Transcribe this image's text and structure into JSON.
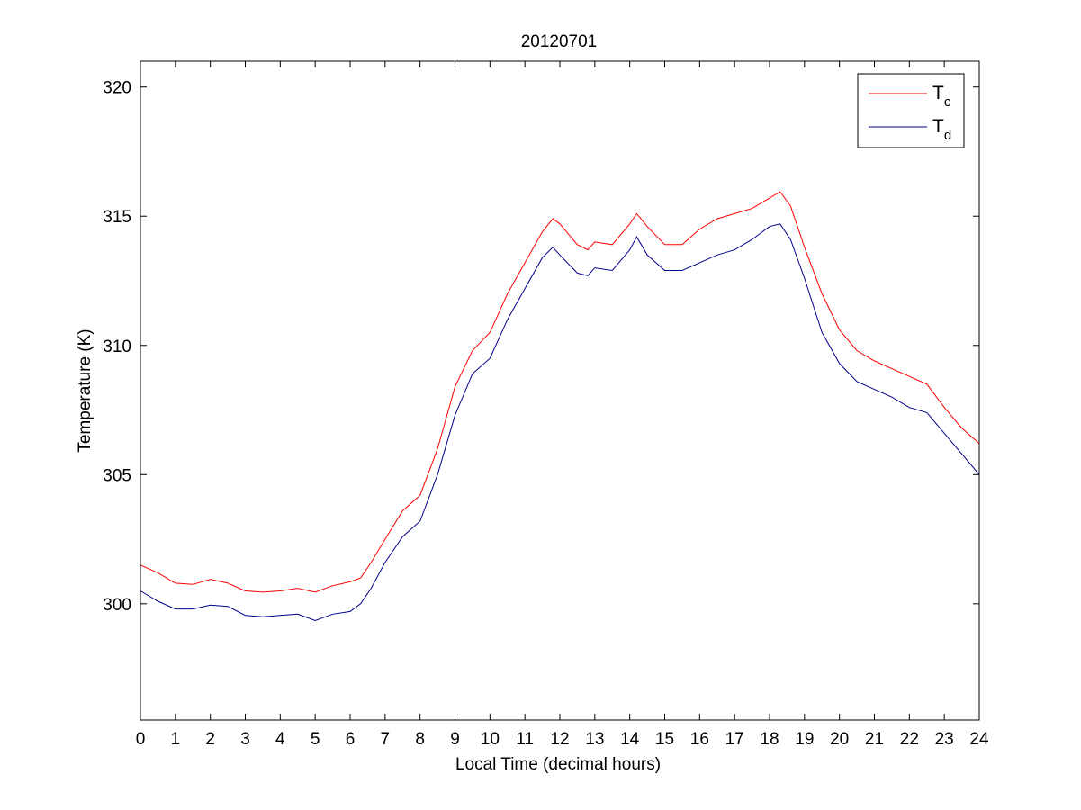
{
  "chart_data": {
    "type": "line",
    "title": "20120701",
    "xlabel": "Local Time (decimal hours)",
    "ylabel": "Temperature (K)",
    "xlim": [
      0,
      24
    ],
    "ylim": [
      295.5,
      321
    ],
    "x_ticks": [
      "0",
      "1",
      "2",
      "3",
      "4",
      "5",
      "6",
      "7",
      "8",
      "9",
      "10",
      "11",
      "12",
      "13",
      "14",
      "15",
      "16",
      "17",
      "18",
      "19",
      "20",
      "21",
      "22",
      "23",
      "24"
    ],
    "y_ticks": [
      "300",
      "305",
      "310",
      "315",
      "320"
    ],
    "grid": false,
    "legend_position": "top-right",
    "series": [
      {
        "name": "T_c",
        "legend_main": "T",
        "legend_sub": "c",
        "color": "#ff0000",
        "points": [
          [
            0,
            301.5
          ],
          [
            0.5,
            301.2
          ],
          [
            1,
            300.8
          ],
          [
            1.5,
            300.75
          ],
          [
            2,
            300.95
          ],
          [
            2.5,
            300.8
          ],
          [
            3,
            300.5
          ],
          [
            3.5,
            300.45
          ],
          [
            4,
            300.5
          ],
          [
            4.5,
            300.6
          ],
          [
            5,
            300.45
          ],
          [
            5.5,
            300.7
          ],
          [
            6,
            300.85
          ],
          [
            6.3,
            301.0
          ],
          [
            6.6,
            301.6
          ],
          [
            7,
            302.5
          ],
          [
            7.5,
            303.6
          ],
          [
            8,
            304.2
          ],
          [
            8.5,
            306.0
          ],
          [
            9,
            308.4
          ],
          [
            9.5,
            309.8
          ],
          [
            10,
            310.5
          ],
          [
            10.5,
            312.0
          ],
          [
            11,
            313.2
          ],
          [
            11.5,
            314.4
          ],
          [
            11.8,
            314.9
          ],
          [
            12,
            314.7
          ],
          [
            12.5,
            313.9
          ],
          [
            12.8,
            313.7
          ],
          [
            13,
            314.0
          ],
          [
            13.5,
            313.9
          ],
          [
            14,
            314.7
          ],
          [
            14.2,
            315.1
          ],
          [
            14.5,
            314.6
          ],
          [
            15,
            313.9
          ],
          [
            15.5,
            313.9
          ],
          [
            16,
            314.5
          ],
          [
            16.5,
            314.9
          ],
          [
            17,
            315.1
          ],
          [
            17.5,
            315.3
          ],
          [
            18,
            315.7
          ],
          [
            18.3,
            315.95
          ],
          [
            18.6,
            315.4
          ],
          [
            19,
            313.8
          ],
          [
            19.5,
            312.0
          ],
          [
            20,
            310.6
          ],
          [
            20.5,
            309.8
          ],
          [
            21,
            309.4
          ],
          [
            21.5,
            309.1
          ],
          [
            22,
            308.8
          ],
          [
            22.5,
            308.5
          ],
          [
            23,
            307.6
          ],
          [
            23.5,
            306.8
          ],
          [
            24,
            306.2
          ]
        ]
      },
      {
        "name": "T_d",
        "legend_main": "T",
        "legend_sub": "d",
        "color": "#00008b",
        "points": [
          [
            0,
            300.5
          ],
          [
            0.5,
            300.1
          ],
          [
            1,
            299.8
          ],
          [
            1.5,
            299.8
          ],
          [
            2,
            299.95
          ],
          [
            2.5,
            299.9
          ],
          [
            3,
            299.55
          ],
          [
            3.5,
            299.5
          ],
          [
            4,
            299.55
          ],
          [
            4.5,
            299.6
          ],
          [
            5,
            299.35
          ],
          [
            5.5,
            299.6
          ],
          [
            6,
            299.7
          ],
          [
            6.3,
            300.0
          ],
          [
            6.6,
            300.6
          ],
          [
            7,
            301.6
          ],
          [
            7.5,
            302.6
          ],
          [
            8,
            303.2
          ],
          [
            8.5,
            305.0
          ],
          [
            9,
            307.3
          ],
          [
            9.5,
            308.9
          ],
          [
            10,
            309.5
          ],
          [
            10.5,
            311.0
          ],
          [
            11,
            312.2
          ],
          [
            11.5,
            313.4
          ],
          [
            11.8,
            313.8
          ],
          [
            12,
            313.5
          ],
          [
            12.5,
            312.8
          ],
          [
            12.8,
            312.7
          ],
          [
            13,
            313.0
          ],
          [
            13.5,
            312.9
          ],
          [
            14,
            313.7
          ],
          [
            14.2,
            314.2
          ],
          [
            14.5,
            313.5
          ],
          [
            15,
            312.9
          ],
          [
            15.5,
            312.9
          ],
          [
            16,
            313.2
          ],
          [
            16.5,
            313.5
          ],
          [
            17,
            313.7
          ],
          [
            17.5,
            314.1
          ],
          [
            18,
            314.6
          ],
          [
            18.3,
            314.7
          ],
          [
            18.6,
            314.1
          ],
          [
            19,
            312.6
          ],
          [
            19.5,
            310.5
          ],
          [
            20,
            309.3
          ],
          [
            20.5,
            308.6
          ],
          [
            21,
            308.3
          ],
          [
            21.5,
            308.0
          ],
          [
            22,
            307.6
          ],
          [
            22.5,
            307.4
          ],
          [
            23,
            306.6
          ],
          [
            23.5,
            305.8
          ],
          [
            24,
            305.0
          ]
        ]
      }
    ]
  }
}
